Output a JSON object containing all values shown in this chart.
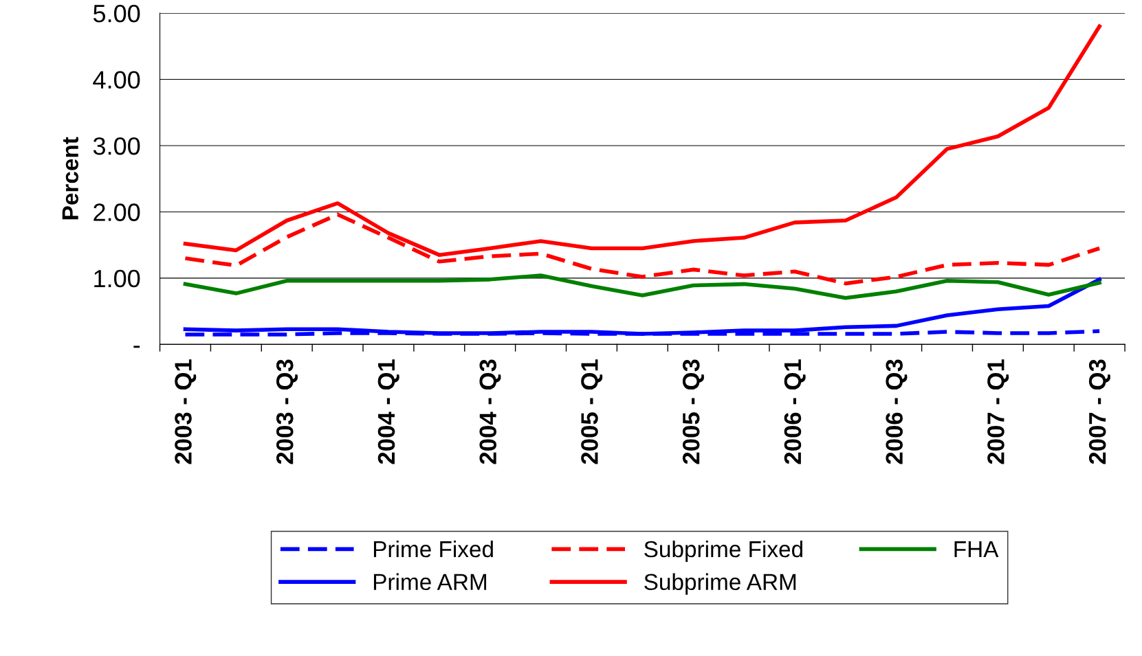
{
  "chart_data": {
    "type": "line",
    "ylabel": "Percent",
    "categories": [
      "2003 - Q1",
      null,
      "2003 - Q3",
      null,
      "2004 - Q1",
      null,
      "2004 - Q3",
      null,
      "2005 - Q1",
      null,
      "2005 - Q3",
      null,
      "2006 - Q1",
      null,
      "2006 - Q3",
      null,
      "2007 - Q1",
      null,
      "2007 - Q3"
    ],
    "ylim": [
      0,
      5
    ],
    "yticks": [
      {
        "value": 0,
        "label": "-"
      },
      {
        "value": 1,
        "label": "1.00"
      },
      {
        "value": 2,
        "label": "2.00"
      },
      {
        "value": 3,
        "label": "3.00"
      },
      {
        "value": 4,
        "label": "4.00"
      },
      {
        "value": 5,
        "label": "5.00"
      }
    ],
    "grid": "y",
    "legend": "bottom",
    "series": [
      {
        "name": "Prime Fixed",
        "color": "#0000ff",
        "line_style": "dashed",
        "values": [
          0.15,
          0.15,
          0.15,
          0.17,
          0.17,
          0.16,
          0.16,
          0.17,
          0.16,
          0.16,
          0.16,
          0.16,
          0.16,
          0.16,
          0.16,
          0.19,
          0.17,
          0.17,
          0.2
        ]
      },
      {
        "name": "Prime ARM",
        "color": "#0000ff",
        "line_style": "solid",
        "values": [
          0.23,
          0.21,
          0.23,
          0.23,
          0.19,
          0.17,
          0.17,
          0.19,
          0.19,
          0.16,
          0.18,
          0.21,
          0.21,
          0.26,
          0.28,
          0.44,
          0.53,
          0.58,
          0.98
        ]
      },
      {
        "name": "Subprime Fixed",
        "color": "#ff0000",
        "line_style": "dashed",
        "values": [
          1.3,
          1.19,
          1.62,
          1.96,
          1.61,
          1.25,
          1.33,
          1.37,
          1.14,
          1.02,
          1.13,
          1.04,
          1.1,
          0.92,
          1.02,
          1.2,
          1.23,
          1.2,
          1.45
        ]
      },
      {
        "name": "Subprime ARM",
        "color": "#ff0000",
        "line_style": "solid",
        "values": [
          1.52,
          1.42,
          1.87,
          2.13,
          1.68,
          1.35,
          1.45,
          1.56,
          1.45,
          1.45,
          1.56,
          1.61,
          1.84,
          1.87,
          2.22,
          2.95,
          3.14,
          3.57,
          4.8
        ]
      },
      {
        "name": "FHA",
        "color": "#008000",
        "line_style": "solid",
        "values": [
          0.91,
          0.77,
          0.96,
          0.96,
          0.96,
          0.96,
          0.98,
          1.04,
          0.88,
          0.74,
          0.89,
          0.91,
          0.84,
          0.7,
          0.8,
          0.96,
          0.94,
          0.75,
          0.93
        ]
      }
    ]
  }
}
